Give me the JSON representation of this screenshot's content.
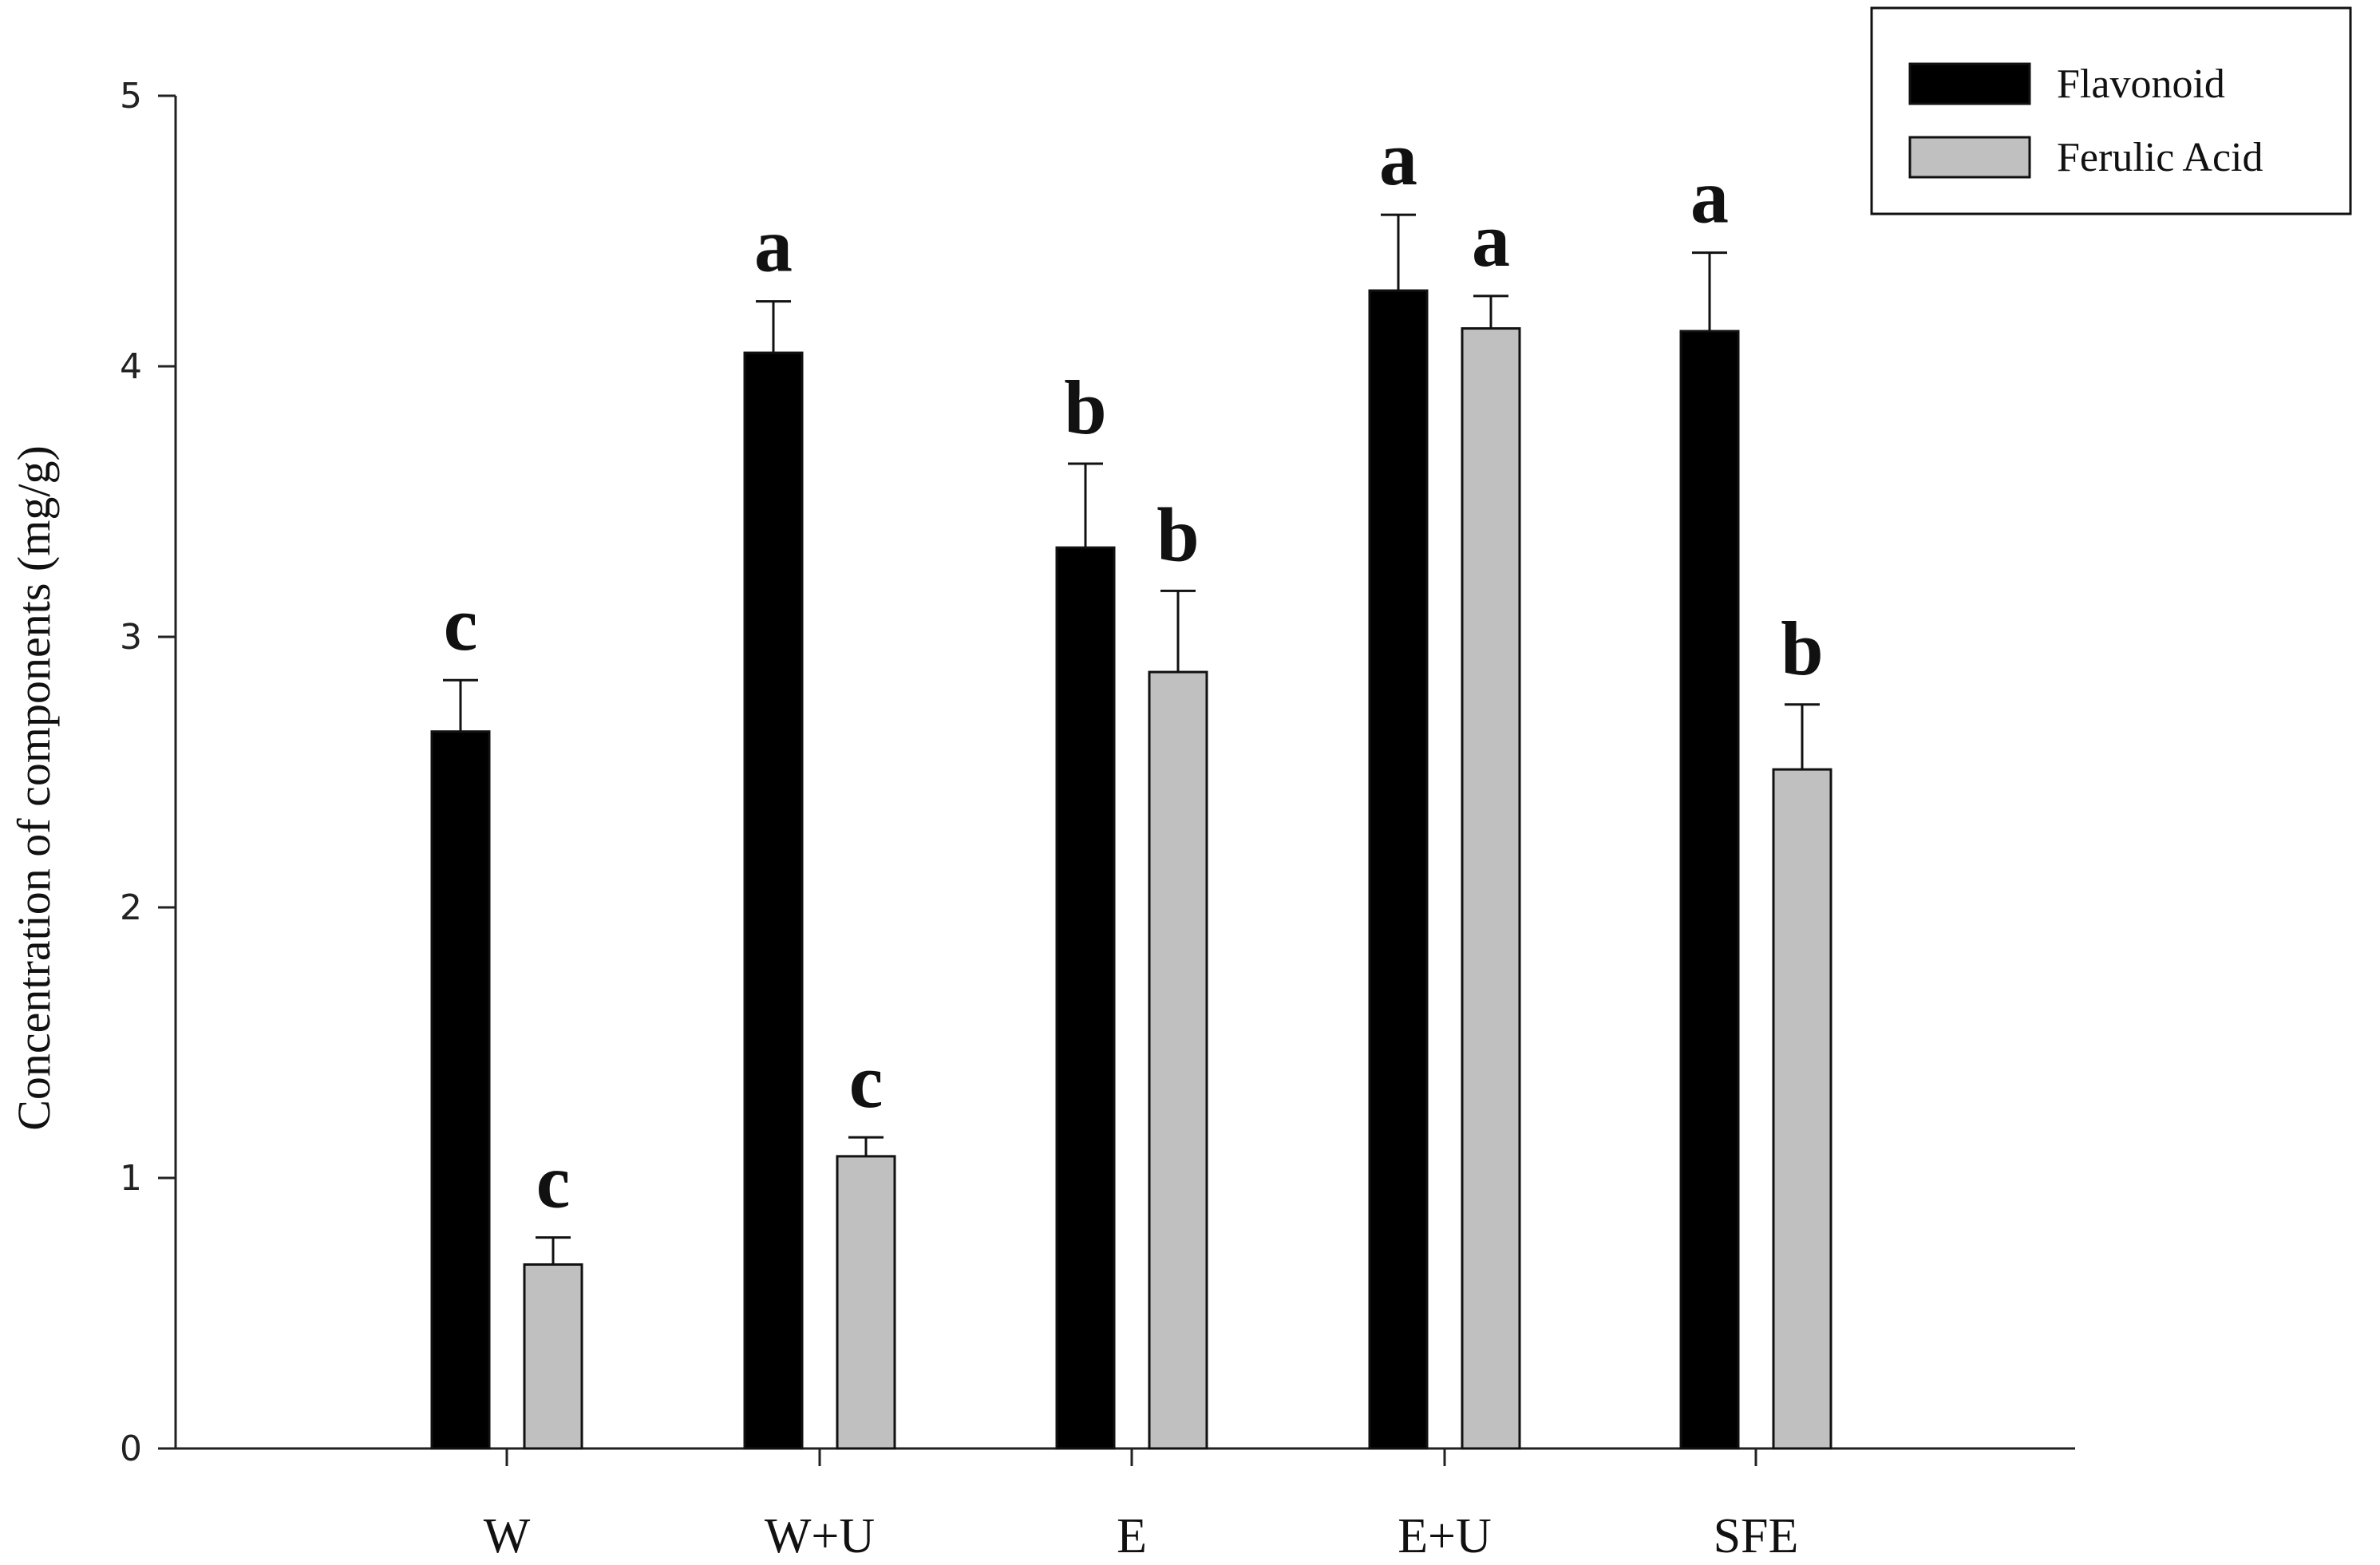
{
  "chart_data": {
    "type": "bar",
    "categories": [
      "W",
      "W+U",
      "E",
      "E+U",
      "SFE"
    ],
    "series": [
      {
        "name": "Flavonoid",
        "color": "#000000",
        "values": [
          2.65,
          4.05,
          3.33,
          4.28,
          4.13
        ],
        "errors": [
          0.19,
          0.19,
          0.31,
          0.28,
          0.29
        ],
        "significance": [
          "c",
          "a",
          "b",
          "a",
          "a"
        ]
      },
      {
        "name": "Ferulic Acid",
        "color": "#c0c0c0",
        "values": [
          0.68,
          1.08,
          2.87,
          4.14,
          2.51
        ],
        "errors": [
          0.1,
          0.07,
          0.3,
          0.12,
          0.24
        ],
        "significance": [
          "c",
          "c",
          "b",
          "a",
          "b"
        ]
      }
    ],
    "xlabel": "",
    "ylabel": "Concentration of components (mg/g)",
    "ylim": [
      0,
      5
    ],
    "yticks": [
      "0",
      "1",
      "2",
      "3",
      "4",
      "5"
    ],
    "legend_position": "top-right",
    "grid": false
  }
}
